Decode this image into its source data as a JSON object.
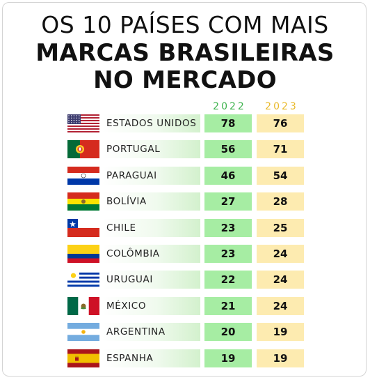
{
  "title": {
    "line1": "OS 10 PAÍSES COM MAIS",
    "line2": "MARCAS BRASILEIRAS",
    "line3": "NO MERCADO"
  },
  "colors": {
    "col_2022": "#a6eda3",
    "col_2023": "#fdebb0",
    "year_2022_text": "#3fb34f",
    "year_2023_text": "#e9b92a"
  },
  "chart_data": {
    "type": "table",
    "columns": [
      "2022",
      "2023"
    ],
    "rows": [
      {
        "country": "ESTADOS UNIDOS",
        "flag": "usa-flag-icon",
        "v2022": "78",
        "v2023": "76"
      },
      {
        "country": "PORTUGAL",
        "flag": "portugal-flag-icon",
        "v2022": "56",
        "v2023": "71"
      },
      {
        "country": "PARAGUAI",
        "flag": "paraguay-flag-icon",
        "v2022": "46",
        "v2023": "54"
      },
      {
        "country": "BOLÍVIA",
        "flag": "bolivia-flag-icon",
        "v2022": "27",
        "v2023": "28"
      },
      {
        "country": "CHILE",
        "flag": "chile-flag-icon",
        "v2022": "23",
        "v2023": "25"
      },
      {
        "country": "COLÔMBIA",
        "flag": "colombia-flag-icon",
        "v2022": "23",
        "v2023": "24"
      },
      {
        "country": "URUGUAI",
        "flag": "uruguay-flag-icon",
        "v2022": "22",
        "v2023": "24"
      },
      {
        "country": "MÉXICO",
        "flag": "mexico-flag-icon",
        "v2022": "21",
        "v2023": "24"
      },
      {
        "country": "ARGENTINA",
        "flag": "argentina-flag-icon",
        "v2022": "20",
        "v2023": "19"
      },
      {
        "country": "ESPANHA",
        "flag": "spain-flag-icon",
        "v2022": "19",
        "v2023": "19"
      }
    ]
  }
}
